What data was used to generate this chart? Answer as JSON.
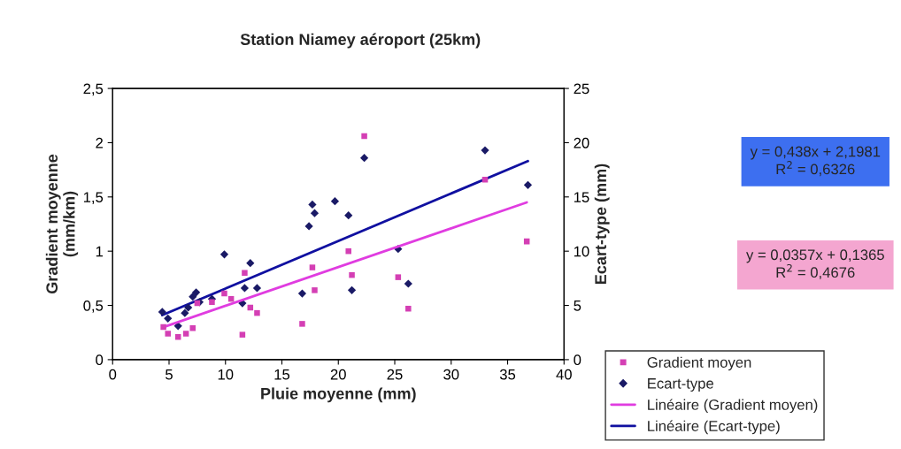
{
  "chart_data": {
    "type": "scatter",
    "title": "Station Niamey aéroport (25km)",
    "xlabel": "Pluie moyenne (mm)",
    "ylabel": "Gradient moyenne\n(mm/km)",
    "y2label": "Ecart-type (mm)",
    "xlim": [
      0,
      40
    ],
    "xticks": [
      0,
      5,
      10,
      15,
      20,
      25,
      30,
      35,
      40
    ],
    "ylim": [
      0,
      2.5
    ],
    "yticks": [
      0,
      {
        "value": 0.5,
        "label": "0,5"
      },
      1,
      {
        "value": 1.5,
        "label": "1,5"
      },
      2,
      {
        "value": 2.5,
        "label": "2,5"
      }
    ],
    "y2lim": [
      0,
      25
    ],
    "y2ticks": [
      0,
      5,
      10,
      15,
      20,
      25
    ],
    "grid": false,
    "legend": "right",
    "series": [
      {
        "name": "Gradient moyen",
        "marker": "square",
        "color": "#d43fb4",
        "x": [
          4.5,
          4.9,
          5.8,
          6.5,
          7.1,
          7.5,
          8.8,
          9.9,
          10.5,
          11.5,
          11.7,
          12.2,
          12.8,
          16.8,
          17.7,
          17.9,
          20.9,
          21.2,
          22.3,
          25.3,
          26.2,
          33.0,
          36.7
        ],
        "values": [
          0.3,
          0.24,
          0.21,
          0.24,
          0.29,
          0.52,
          0.53,
          0.61,
          0.56,
          0.23,
          0.8,
          0.48,
          0.43,
          0.33,
          0.85,
          0.64,
          1.0,
          0.78,
          2.06,
          0.76,
          0.47,
          1.66,
          1.09
        ]
      },
      {
        "name": "Ecart-type",
        "marker": "diamond",
        "axis": "y2",
        "color": "#1a1a66",
        "x": [
          4.4,
          4.9,
          5.8,
          6.4,
          6.7,
          7.1,
          7.4,
          7.7,
          8.8,
          9.9,
          11.5,
          11.7,
          12.2,
          12.8,
          16.8,
          17.4,
          17.7,
          17.9,
          19.7,
          20.9,
          21.2,
          22.3,
          25.3,
          26.2,
          33.0,
          36.8
        ],
        "values": [
          4.4,
          3.8,
          3.1,
          4.3,
          4.8,
          5.8,
          6.2,
          5.3,
          5.6,
          9.7,
          5.2,
          6.6,
          8.9,
          6.6,
          6.1,
          12.3,
          14.3,
          13.5,
          14.6,
          13.3,
          6.4,
          18.6,
          10.2,
          7.0,
          19.3,
          16.1
        ]
      },
      {
        "name": "Linéaire (Gradient moyen)",
        "type": "line",
        "line_style": "solid",
        "color": "#e03ce0",
        "x": [
          4.5,
          36.7
        ],
        "values": [
          0.3,
          1.45
        ]
      },
      {
        "name": "Linéaire (Ecart-type)",
        "type": "line",
        "line_style": "solid",
        "axis": "y2",
        "color": "#1010a0",
        "x": [
          4.4,
          36.8
        ],
        "values": [
          4.1,
          18.3
        ]
      }
    ],
    "annotations": [
      "y = 0,438x + 2,1981\nR$^{2}$ = 0,6326",
      "y = 0,0357x + 0,1365\nR$^{2}$ = 0,4676"
    ]
  }
}
